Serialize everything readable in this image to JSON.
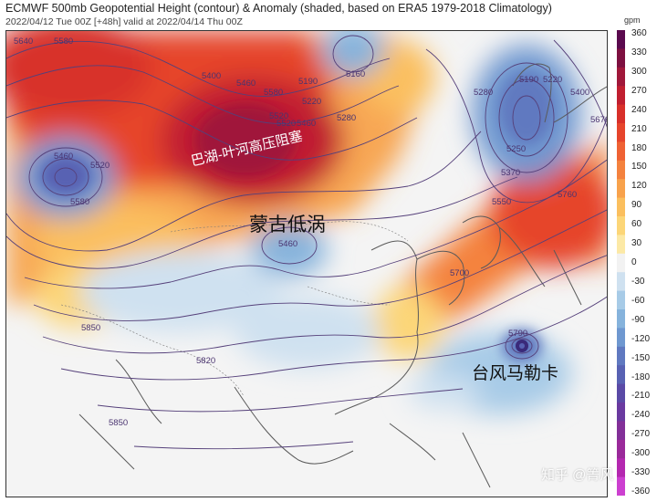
{
  "header": {
    "title": "ECMWF 500mb Geopotential Height (contour) & Anomaly (shaded, based on ERA5 1979-2018 Climatology)",
    "subtitle": "2022/04/12 Tue 00Z [+48h] valid at 2022/04/14 Thu 00Z"
  },
  "colorbar": {
    "unit": "gpm",
    "ticks": [
      "360",
      "330",
      "300",
      "270",
      "240",
      "210",
      "180",
      "150",
      "120",
      "90",
      "60",
      "30",
      "0",
      "-30",
      "-60",
      "-90",
      "-120",
      "-150",
      "-180",
      "-210",
      "-240",
      "-270",
      "-300",
      "-330",
      "-360"
    ],
    "colors_top_to_bottom": [
      "#5a0a4e",
      "#7d1040",
      "#a0183a",
      "#c01f30",
      "#d8302a",
      "#e6452c",
      "#ef6234",
      "#f4823e",
      "#f8a24c",
      "#fbbf5e",
      "#fcd678",
      "#fce9a6",
      "#f2f2f2",
      "#cfe1f0",
      "#a7cbe7",
      "#86b3dc",
      "#6f98d0",
      "#6079c0",
      "#5862b3",
      "#5a4aa6",
      "#6a3aa0",
      "#823098",
      "#9a2a9a",
      "#b428b0",
      "#cc40d0"
    ]
  },
  "map": {
    "contour_labels": [
      "5640",
      "5580",
      "5460",
      "5520",
      "5580",
      "5400",
      "5460",
      "5520",
      "5580",
      "5520",
      "5460",
      "5190",
      "5220",
      "5280",
      "5160",
      "5190",
      "5220",
      "5280",
      "5250",
      "5370",
      "5400",
      "5550",
      "5670",
      "5760",
      "5460",
      "5700",
      "5850",
      "5790",
      "5820",
      "5850"
    ],
    "annotations": {
      "blocking_high": "巴湖-叶河高压阻塞",
      "mongolia_low": "蒙古低涡",
      "typhoon": "台风马勒卡"
    },
    "watermark": "知乎 @箐风"
  }
}
